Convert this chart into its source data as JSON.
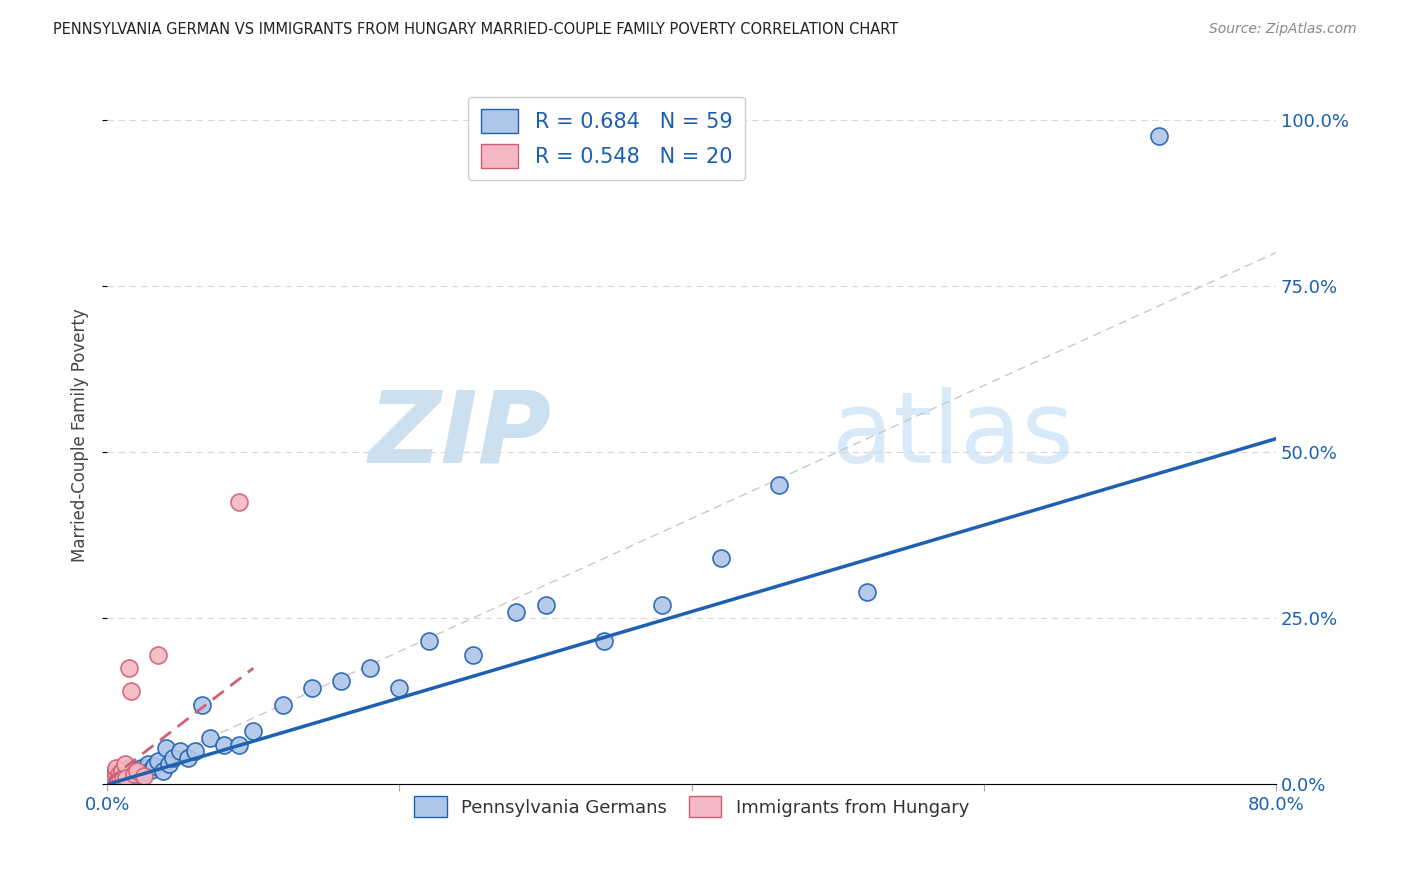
{
  "title": "PENNSYLVANIA GERMAN VS IMMIGRANTS FROM HUNGARY MARRIED-COUPLE FAMILY POVERTY CORRELATION CHART",
  "source": "Source: ZipAtlas.com",
  "ylabel": "Married-Couple Family Poverty",
  "xlim": [
    0.0,
    0.8
  ],
  "ylim": [
    0.0,
    1.05
  ],
  "legend1_label": "R = 0.684   N = 59",
  "legend2_label": "R = 0.548   N = 20",
  "legend_bottom1": "Pennsylvania Germans",
  "legend_bottom2": "Immigrants from Hungary",
  "blue_scatter_color": "#aec6e8",
  "pink_scatter_color": "#f4b8c4",
  "blue_line_color": "#2060b0",
  "pink_line_color": "#d06070",
  "diagonal_color": "#c8c8c8",
  "watermark_zip_color": "#cce0f0",
  "watermark_atlas_color": "#d8eaf8",
  "blue_scatter_x": [
    0.003,
    0.005,
    0.006,
    0.007,
    0.008,
    0.008,
    0.009,
    0.01,
    0.01,
    0.011,
    0.012,
    0.013,
    0.013,
    0.014,
    0.015,
    0.015,
    0.016,
    0.017,
    0.018,
    0.019,
    0.02,
    0.021,
    0.022,
    0.022,
    0.023,
    0.025,
    0.026,
    0.027,
    0.028,
    0.03,
    0.032,
    0.035,
    0.038,
    0.04,
    0.042,
    0.045,
    0.05,
    0.055,
    0.06,
    0.065,
    0.07,
    0.08,
    0.09,
    0.1,
    0.12,
    0.14,
    0.16,
    0.18,
    0.2,
    0.22,
    0.25,
    0.28,
    0.3,
    0.34,
    0.38,
    0.42,
    0.46,
    0.52,
    0.72
  ],
  "blue_scatter_y": [
    0.005,
    0.01,
    0.008,
    0.012,
    0.01,
    0.015,
    0.008,
    0.012,
    0.02,
    0.01,
    0.015,
    0.008,
    0.02,
    0.012,
    0.015,
    0.025,
    0.01,
    0.018,
    0.012,
    0.015,
    0.018,
    0.01,
    0.02,
    0.015,
    0.025,
    0.02,
    0.018,
    0.025,
    0.03,
    0.022,
    0.028,
    0.035,
    0.02,
    0.055,
    0.03,
    0.04,
    0.05,
    0.04,
    0.05,
    0.12,
    0.07,
    0.06,
    0.06,
    0.08,
    0.12,
    0.145,
    0.155,
    0.175,
    0.145,
    0.215,
    0.195,
    0.26,
    0.27,
    0.215,
    0.27,
    0.34,
    0.45,
    0.29,
    0.975
  ],
  "pink_scatter_x": [
    0.002,
    0.003,
    0.004,
    0.005,
    0.006,
    0.006,
    0.007,
    0.008,
    0.009,
    0.01,
    0.011,
    0.012,
    0.013,
    0.015,
    0.016,
    0.018,
    0.02,
    0.025,
    0.035,
    0.09
  ],
  "pink_scatter_y": [
    0.008,
    0.012,
    0.01,
    0.018,
    0.015,
    0.025,
    0.008,
    0.015,
    0.01,
    0.02,
    0.01,
    0.03,
    0.01,
    0.175,
    0.14,
    0.015,
    0.02,
    0.012,
    0.195,
    0.425
  ],
  "blue_line_x": [
    0.0,
    0.8
  ],
  "blue_line_y": [
    0.0,
    0.52
  ],
  "pink_line_x": [
    0.0,
    0.1
  ],
  "pink_line_y": [
    0.005,
    0.175
  ],
  "background_color": "#ffffff",
  "grid_color": "#d8d8d8"
}
